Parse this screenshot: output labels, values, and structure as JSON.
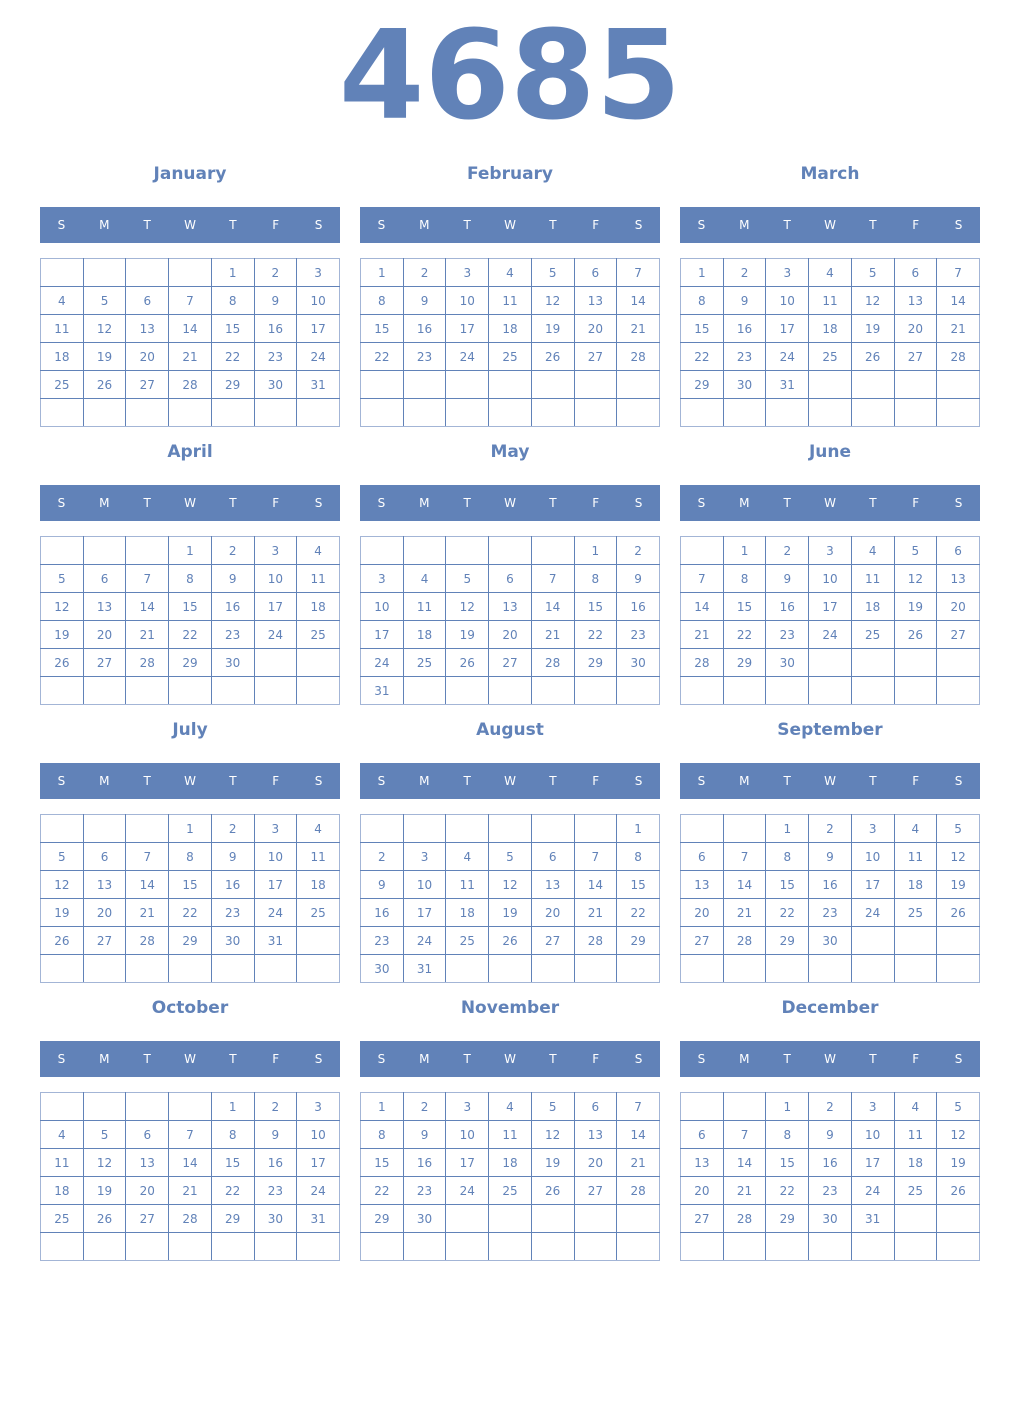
{
  "year": "4685",
  "accent_color": "#6182b8",
  "weekdays": [
    "S",
    "M",
    "T",
    "W",
    "T",
    "F",
    "S"
  ],
  "months": [
    {
      "name": "January",
      "weeks": [
        [
          null,
          null,
          null,
          null,
          1,
          2,
          3
        ],
        [
          4,
          5,
          6,
          7,
          8,
          9,
          10
        ],
        [
          11,
          12,
          13,
          14,
          15,
          16,
          17
        ],
        [
          18,
          19,
          20,
          21,
          22,
          23,
          24
        ],
        [
          25,
          26,
          27,
          28,
          29,
          30,
          31
        ],
        [
          null,
          null,
          null,
          null,
          null,
          null,
          null
        ]
      ]
    },
    {
      "name": "February",
      "weeks": [
        [
          1,
          2,
          3,
          4,
          5,
          6,
          7
        ],
        [
          8,
          9,
          10,
          11,
          12,
          13,
          14
        ],
        [
          15,
          16,
          17,
          18,
          19,
          20,
          21
        ],
        [
          22,
          23,
          24,
          25,
          26,
          27,
          28
        ],
        [
          null,
          null,
          null,
          null,
          null,
          null,
          null
        ],
        [
          null,
          null,
          null,
          null,
          null,
          null,
          null
        ]
      ]
    },
    {
      "name": "March",
      "weeks": [
        [
          1,
          2,
          3,
          4,
          5,
          6,
          7
        ],
        [
          8,
          9,
          10,
          11,
          12,
          13,
          14
        ],
        [
          15,
          16,
          17,
          18,
          19,
          20,
          21
        ],
        [
          22,
          23,
          24,
          25,
          26,
          27,
          28
        ],
        [
          29,
          30,
          31,
          null,
          null,
          null,
          null
        ],
        [
          null,
          null,
          null,
          null,
          null,
          null,
          null
        ]
      ]
    },
    {
      "name": "April",
      "weeks": [
        [
          null,
          null,
          null,
          1,
          2,
          3,
          4
        ],
        [
          5,
          6,
          7,
          8,
          9,
          10,
          11
        ],
        [
          12,
          13,
          14,
          15,
          16,
          17,
          18
        ],
        [
          19,
          20,
          21,
          22,
          23,
          24,
          25
        ],
        [
          26,
          27,
          28,
          29,
          30,
          null,
          null
        ],
        [
          null,
          null,
          null,
          null,
          null,
          null,
          null
        ]
      ]
    },
    {
      "name": "May",
      "weeks": [
        [
          null,
          null,
          null,
          null,
          null,
          1,
          2
        ],
        [
          3,
          4,
          5,
          6,
          7,
          8,
          9
        ],
        [
          10,
          11,
          12,
          13,
          14,
          15,
          16
        ],
        [
          17,
          18,
          19,
          20,
          21,
          22,
          23
        ],
        [
          24,
          25,
          26,
          27,
          28,
          29,
          30
        ],
        [
          31,
          null,
          null,
          null,
          null,
          null,
          null
        ]
      ]
    },
    {
      "name": "June",
      "weeks": [
        [
          null,
          1,
          2,
          3,
          4,
          5,
          6
        ],
        [
          7,
          8,
          9,
          10,
          11,
          12,
          13
        ],
        [
          14,
          15,
          16,
          17,
          18,
          19,
          20
        ],
        [
          21,
          22,
          23,
          24,
          25,
          26,
          27
        ],
        [
          28,
          29,
          30,
          null,
          null,
          null,
          null
        ],
        [
          null,
          null,
          null,
          null,
          null,
          null,
          null
        ]
      ]
    },
    {
      "name": "July",
      "weeks": [
        [
          null,
          null,
          null,
          1,
          2,
          3,
          4
        ],
        [
          5,
          6,
          7,
          8,
          9,
          10,
          11
        ],
        [
          12,
          13,
          14,
          15,
          16,
          17,
          18
        ],
        [
          19,
          20,
          21,
          22,
          23,
          24,
          25
        ],
        [
          26,
          27,
          28,
          29,
          30,
          31,
          null
        ],
        [
          null,
          null,
          null,
          null,
          null,
          null,
          null
        ]
      ]
    },
    {
      "name": "August",
      "weeks": [
        [
          null,
          null,
          null,
          null,
          null,
          null,
          1
        ],
        [
          2,
          3,
          4,
          5,
          6,
          7,
          8
        ],
        [
          9,
          10,
          11,
          12,
          13,
          14,
          15
        ],
        [
          16,
          17,
          18,
          19,
          20,
          21,
          22
        ],
        [
          23,
          24,
          25,
          26,
          27,
          28,
          29
        ],
        [
          30,
          31,
          null,
          null,
          null,
          null,
          null
        ]
      ]
    },
    {
      "name": "September",
      "weeks": [
        [
          null,
          null,
          1,
          2,
          3,
          4,
          5
        ],
        [
          6,
          7,
          8,
          9,
          10,
          11,
          12
        ],
        [
          13,
          14,
          15,
          16,
          17,
          18,
          19
        ],
        [
          20,
          21,
          22,
          23,
          24,
          25,
          26
        ],
        [
          27,
          28,
          29,
          30,
          null,
          null,
          null
        ],
        [
          null,
          null,
          null,
          null,
          null,
          null,
          null
        ]
      ]
    },
    {
      "name": "October",
      "weeks": [
        [
          null,
          null,
          null,
          null,
          1,
          2,
          3
        ],
        [
          4,
          5,
          6,
          7,
          8,
          9,
          10
        ],
        [
          11,
          12,
          13,
          14,
          15,
          16,
          17
        ],
        [
          18,
          19,
          20,
          21,
          22,
          23,
          24
        ],
        [
          25,
          26,
          27,
          28,
          29,
          30,
          31
        ],
        [
          null,
          null,
          null,
          null,
          null,
          null,
          null
        ]
      ]
    },
    {
      "name": "November",
      "weeks": [
        [
          1,
          2,
          3,
          4,
          5,
          6,
          7
        ],
        [
          8,
          9,
          10,
          11,
          12,
          13,
          14
        ],
        [
          15,
          16,
          17,
          18,
          19,
          20,
          21
        ],
        [
          22,
          23,
          24,
          25,
          26,
          27,
          28
        ],
        [
          29,
          30,
          null,
          null,
          null,
          null,
          null
        ],
        [
          null,
          null,
          null,
          null,
          null,
          null,
          null
        ]
      ]
    },
    {
      "name": "December",
      "weeks": [
        [
          null,
          null,
          1,
          2,
          3,
          4,
          5
        ],
        [
          6,
          7,
          8,
          9,
          10,
          11,
          12
        ],
        [
          13,
          14,
          15,
          16,
          17,
          18,
          19
        ],
        [
          20,
          21,
          22,
          23,
          24,
          25,
          26
        ],
        [
          27,
          28,
          29,
          30,
          31,
          null,
          null
        ],
        [
          null,
          null,
          null,
          null,
          null,
          null,
          null
        ]
      ]
    }
  ]
}
